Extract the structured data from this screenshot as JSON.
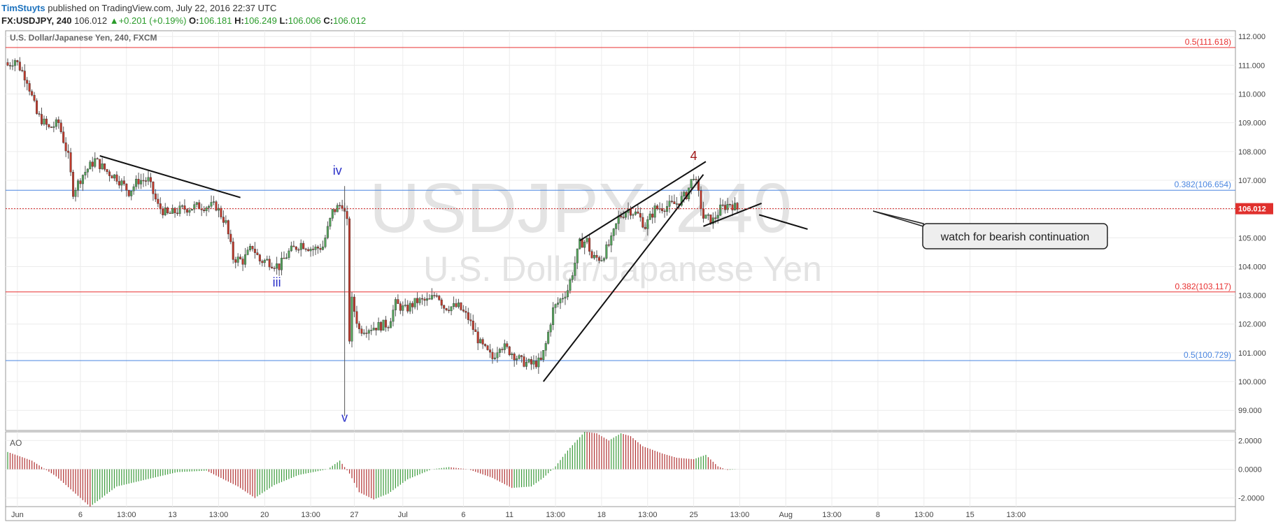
{
  "header": {
    "author": "TimStuyts",
    "published_text": "published on TradingView.com, July 22, 2016 22:37 UTC",
    "symbol": "FX:USDJPY, 240",
    "last": "106.012",
    "change_arrow": "▲",
    "change": "+0.201 (+0.19%)",
    "o_label": "O:",
    "o_value": "106.181",
    "h_label": "H:",
    "h_value": "106.249",
    "l_label": "L:",
    "l_value": "106.006",
    "c_label": "C:",
    "c_value": "106.012"
  },
  "chart_data": {
    "type": "candlestick",
    "title": "U.S. Dollar/Japanese Yen, 240, FXCM",
    "watermark_symbol": "USDJPY, 240",
    "watermark_name": "U.S. Dollar/Japanese Yen",
    "ylim": [
      98.3,
      112.2
    ],
    "y_ticks": [
      112,
      111,
      110,
      109,
      108,
      107,
      106,
      105,
      104,
      103,
      102,
      101,
      100,
      99
    ],
    "y_tick_labels": [
      "112.000",
      "111.000",
      "110.000",
      "109.000",
      "108.000",
      "107.000",
      "106.000",
      "105.000",
      "104.000",
      "103.000",
      "102.000",
      "101.000",
      "100.000",
      "99.000"
    ],
    "x_tick_labels": [
      "Jun",
      "6",
      "13:00",
      "13",
      "13:00",
      "20",
      "13:00",
      "27",
      "Jul",
      "6",
      "11",
      "13:00",
      "18",
      "13:00",
      "25",
      "13:00",
      "Aug",
      "13:00",
      "8",
      "13:00",
      "15",
      "13:00"
    ],
    "x_tick_bar_index": [
      4,
      30,
      49,
      68,
      87,
      106,
      125,
      143,
      163,
      188,
      207,
      226,
      245,
      264,
      283,
      302,
      321,
      340,
      359,
      378,
      397,
      416
    ],
    "bar_count": 430,
    "anchors": [
      [
        0,
        111.0
      ],
      [
        3,
        111.2
      ],
      [
        8,
        110.5
      ],
      [
        12,
        109.3
      ],
      [
        17,
        108.8
      ],
      [
        21,
        109.0
      ],
      [
        25,
        107.8
      ],
      [
        27,
        106.6
      ],
      [
        31,
        107.2
      ],
      [
        36,
        107.7
      ],
      [
        41,
        107.3
      ],
      [
        45,
        107.1
      ],
      [
        50,
        106.6
      ],
      [
        54,
        107.0
      ],
      [
        58,
        107.0
      ],
      [
        62,
        106.1
      ],
      [
        66,
        105.8
      ],
      [
        72,
        106.0
      ],
      [
        79,
        106.1
      ],
      [
        86,
        106.1
      ],
      [
        90,
        105.5
      ],
      [
        93,
        104.3
      ],
      [
        97,
        104.2
      ],
      [
        101,
        104.7
      ],
      [
        104,
        104.2
      ],
      [
        107,
        104.2
      ],
      [
        112,
        104.0
      ],
      [
        116,
        104.5
      ],
      [
        121,
        104.8
      ],
      [
        126,
        104.6
      ],
      [
        130,
        104.7
      ],
      [
        134,
        105.9
      ],
      [
        138,
        106.2
      ],
      [
        140,
        105.5
      ],
      [
        141,
        101.5
      ],
      [
        142,
        102.8
      ],
      [
        145,
        101.8
      ],
      [
        151,
        101.9
      ],
      [
        157,
        102.0
      ],
      [
        160,
        102.7
      ],
      [
        164,
        102.5
      ],
      [
        169,
        102.8
      ],
      [
        174,
        102.8
      ],
      [
        177,
        103.1
      ],
      [
        180,
        102.6
      ],
      [
        186,
        102.6
      ],
      [
        190,
        102.2
      ],
      [
        195,
        101.3
      ],
      [
        200,
        100.8
      ],
      [
        203,
        101.3
      ],
      [
        208,
        101.0
      ],
      [
        212,
        100.7
      ],
      [
        216,
        100.6
      ],
      [
        220,
        100.7
      ],
      [
        222,
        101.3
      ],
      [
        225,
        102.5
      ],
      [
        231,
        103.2
      ],
      [
        233,
        103.8
      ],
      [
        236,
        104.8
      ],
      [
        239,
        104.9
      ],
      [
        241,
        104.3
      ],
      [
        245,
        104.3
      ],
      [
        249,
        104.9
      ],
      [
        252,
        105.7
      ],
      [
        256,
        106.0
      ],
      [
        260,
        105.8
      ],
      [
        263,
        105.4
      ],
      [
        267,
        106.0
      ],
      [
        272,
        106.1
      ],
      [
        276,
        106.2
      ],
      [
        280,
        106.5
      ],
      [
        283,
        107.2
      ],
      [
        285,
        106.5
      ],
      [
        287,
        105.7
      ],
      [
        291,
        105.6
      ],
      [
        294,
        106.0
      ],
      [
        298,
        106.2
      ],
      [
        301,
        106.0
      ]
    ],
    "horizontal_levels": [
      {
        "price": 111.618,
        "label": "0.5(111.618)",
        "color": "#e83030"
      },
      {
        "price": 106.654,
        "label": "0.382(106.654)",
        "color": "#4a86e0"
      },
      {
        "price": 103.117,
        "label": "0.382(103.117)",
        "color": "#e83030"
      },
      {
        "price": 100.729,
        "label": "0.5(100.729)",
        "color": "#4a86e0"
      }
    ],
    "current_price": 106.012,
    "current_price_label": "106.012",
    "wave_labels": [
      {
        "text": "iv",
        "bar": 136,
        "price": 107.2,
        "color": "#2a30c8"
      },
      {
        "text": "iii",
        "bar": 111,
        "price": 103.3,
        "color": "#2a30c8"
      },
      {
        "text": "v",
        "bar": 139,
        "price": 98.6,
        "color": "#2a30c8"
      },
      {
        "text": "4",
        "bar": 283,
        "price": 107.7,
        "color": "#a01818"
      }
    ],
    "trend_lines": [
      {
        "bar1": 38,
        "price1": 107.85,
        "bar2": 96,
        "price2": 106.4
      },
      {
        "bar1": 221,
        "price1": 100.0,
        "bar2": 287,
        "price2": 107.2
      },
      {
        "bar1": 236,
        "price1": 104.9,
        "bar2": 288,
        "price2": 107.65
      },
      {
        "bar1": 287,
        "price1": 105.4,
        "bar2": 311,
        "price2": 106.2
      },
      {
        "bar1": 310,
        "price1": 105.8,
        "bar2": 330,
        "price2": 105.3
      }
    ],
    "annotation": "watch for bearish continuation",
    "ao_indicator": {
      "label": "AO",
      "ylim": [
        -2.6,
        2.6
      ],
      "y_ticks": [
        2,
        0,
        -2
      ],
      "y_tick_labels": [
        "2.0000",
        "0.0000",
        "-2.0000"
      ],
      "anchors": [
        [
          0,
          1.2
        ],
        [
          10,
          0.6
        ],
        [
          20,
          -0.5
        ],
        [
          34,
          -2.6
        ],
        [
          45,
          -1.2
        ],
        [
          60,
          -0.6
        ],
        [
          70,
          -0.2
        ],
        [
          82,
          -0.1
        ],
        [
          95,
          -1.2
        ],
        [
          102,
          -2.0
        ],
        [
          110,
          -1.1
        ],
        [
          120,
          -0.4
        ],
        [
          132,
          0.0
        ],
        [
          137,
          0.6
        ],
        [
          141,
          -0.3
        ],
        [
          145,
          -1.6
        ],
        [
          151,
          -2.1
        ],
        [
          157,
          -1.7
        ],
        [
          165,
          -0.7
        ],
        [
          175,
          0.0
        ],
        [
          182,
          0.15
        ],
        [
          190,
          0.0
        ],
        [
          200,
          -0.6
        ],
        [
          208,
          -1.3
        ],
        [
          216,
          -1.2
        ],
        [
          221,
          -0.6
        ],
        [
          226,
          0.2
        ],
        [
          231,
          1.3
        ],
        [
          238,
          2.6
        ],
        [
          243,
          2.5
        ],
        [
          248,
          2.0
        ],
        [
          253,
          2.5
        ],
        [
          257,
          2.3
        ],
        [
          262,
          1.6
        ],
        [
          270,
          1.1
        ],
        [
          276,
          0.8
        ],
        [
          283,
          0.7
        ],
        [
          288,
          1.0
        ],
        [
          293,
          0.2
        ],
        [
          297,
          -0.05
        ],
        [
          301,
          0.0
        ]
      ]
    }
  }
}
